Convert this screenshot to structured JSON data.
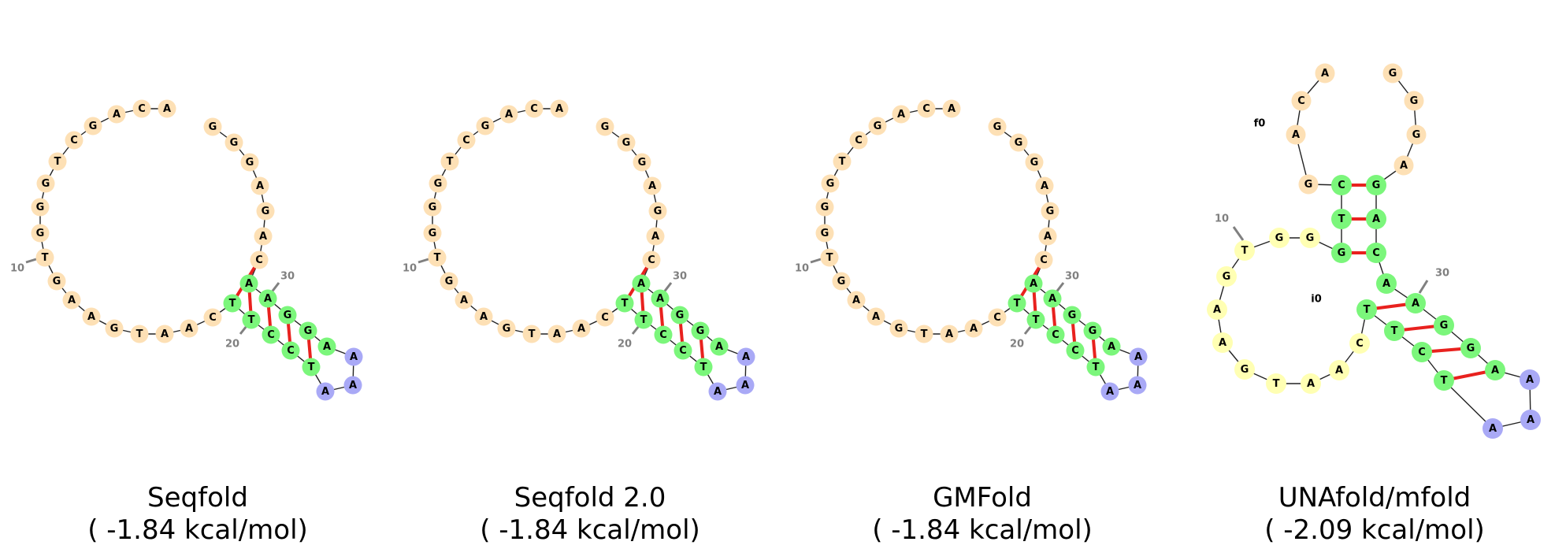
{
  "colors": {
    "unpaired": "#fde0b5",
    "stem": "#7bf67b",
    "hairpin": "#a9a9f6",
    "interior": "#ffffb3",
    "pair_line": "#e8211e",
    "backbone": "#222222",
    "index_label": "#808080"
  },
  "panels": [
    {
      "name": "Seqfold",
      "energy": "( -1.84 kcal/mol)",
      "index_labels": [
        "10",
        "20",
        "30"
      ]
    },
    {
      "name": "Seqfold 2.0",
      "energy": "( -1.84 kcal/mol)",
      "index_labels": [
        "10",
        "20",
        "30"
      ]
    },
    {
      "name": "GMFold",
      "energy": "( -1.84 kcal/mol)",
      "index_labels": [
        "10",
        "20",
        "30"
      ]
    },
    {
      "name": "UNAfold/mfold",
      "energy": "( -2.09 kcal/mol)",
      "index_labels": [
        "10",
        "30"
      ],
      "loop_labels": [
        "f0",
        "i0"
      ]
    }
  ]
}
